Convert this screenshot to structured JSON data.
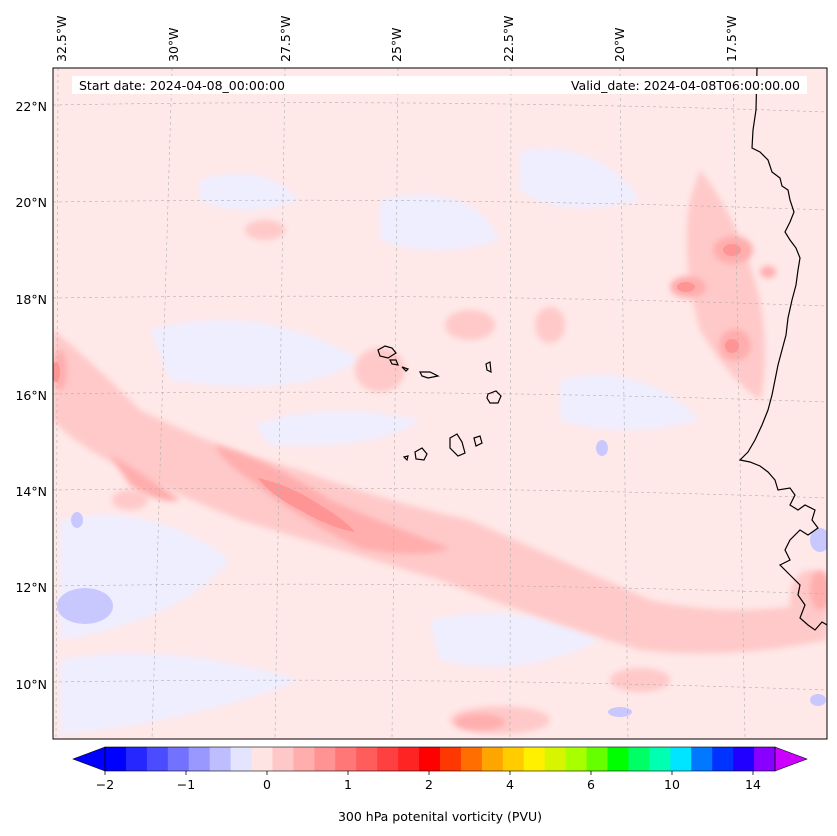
{
  "header": {
    "start_date": "Start date: 2024-04-08_00:00:00",
    "valid_date": "Valid_date: 2024-04-08T06:00:00.00"
  },
  "longitude_labels": [
    "32.5°W",
    "30°W",
    "27.5°W",
    "25°W",
    "22.5°W",
    "20°W",
    "17.5°W"
  ],
  "latitude_labels": [
    "22°N",
    "20°N",
    "18°N",
    "16°N",
    "14°N",
    "12°N",
    "10°N"
  ],
  "colorbar": {
    "label": "300 hPa potenital vorticity (PVU)",
    "ticks": [
      "−2",
      "−1",
      "0",
      "1",
      "2",
      "4",
      "6",
      "10",
      "14"
    ],
    "colors": [
      "#0000ff",
      "#2626ff",
      "#4c4cff",
      "#7272ff",
      "#9898ff",
      "#bebeff",
      "#e4e4ff",
      "#ffe4e4",
      "#ffc8c8",
      "#ffadad",
      "#ff9292",
      "#ff7777",
      "#ff5c5c",
      "#ff4040",
      "#ff2424",
      "#ff0000",
      "#ff3700",
      "#ff6e00",
      "#ffa500",
      "#ffcc00",
      "#fff000",
      "#d8f500",
      "#a8ff00",
      "#66ff00",
      "#00ff00",
      "#00ff66",
      "#00ffb0",
      "#00e5ff",
      "#0078ff",
      "#0033ff",
      "#2200ff",
      "#8800ff"
    ],
    "under_color": "#0000ff",
    "over_color": "#cc00ff"
  },
  "colors": {
    "background_field": "#ffe8e8",
    "coastline": "#000000",
    "grid": "#b0b0b0"
  }
}
